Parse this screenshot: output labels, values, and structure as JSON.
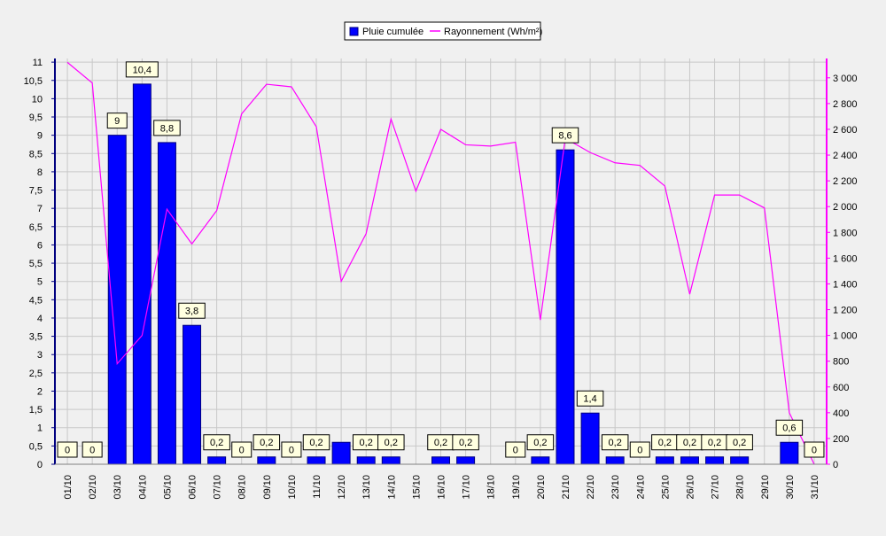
{
  "chart_data": {
    "type": "bar",
    "categories": [
      "01/10",
      "02/10",
      "03/10",
      "04/10",
      "05/10",
      "06/10",
      "07/10",
      "08/10",
      "09/10",
      "10/10",
      "11/10",
      "12/10",
      "13/10",
      "14/10",
      "15/10",
      "16/10",
      "17/10",
      "18/10",
      "19/10",
      "20/10",
      "21/10",
      "22/10",
      "23/10",
      "24/10",
      "25/10",
      "26/10",
      "27/10",
      "28/10",
      "29/10",
      "30/10",
      "31/10"
    ],
    "series": [
      {
        "name": "Pluie cumulée",
        "type": "bar",
        "axis": "left",
        "color": "#0000ff",
        "values": [
          0,
          0,
          9,
          10.4,
          8.8,
          3.8,
          0.2,
          0,
          0.2,
          0,
          0.2,
          0.6,
          0.2,
          0.2,
          0,
          0.2,
          0.2,
          0,
          0,
          0.2,
          8.6,
          1.4,
          0.2,
          0,
          0.2,
          0.2,
          0.2,
          0.2,
          0,
          0.6,
          0
        ],
        "labels": [
          "0",
          "0",
          "9",
          "10,4",
          "8,8",
          "3,8",
          "0,2",
          "0",
          "0,2",
          "0",
          "0,2",
          null,
          "0,2",
          "0,2",
          null,
          "0,2",
          "0,2",
          null,
          "0",
          "0,2",
          "8,6",
          "1,4",
          "0,2",
          "0",
          "0,2",
          "0,2",
          "0,2",
          "0,2",
          null,
          "0,6",
          "0"
        ]
      },
      {
        "name": "Rayonnement (Wh/m²)",
        "type": "line",
        "axis": "right",
        "color": "#ff00ff",
        "values": [
          3120,
          2960,
          780,
          1000,
          1980,
          1710,
          1970,
          2720,
          2950,
          2930,
          2620,
          1420,
          1790,
          2680,
          2120,
          2600,
          2480,
          2470,
          2500,
          1120,
          2530,
          2420,
          2340,
          2320,
          2160,
          1320,
          2090,
          2090,
          1990,
          400,
          0
        ]
      }
    ],
    "y_left": {
      "ylim": [
        0,
        11.1
      ],
      "ticks": [
        0,
        0.5,
        1,
        1.5,
        2,
        2.5,
        3,
        3.5,
        4,
        4.5,
        5,
        5.5,
        6,
        6.5,
        7,
        7.5,
        8,
        8.5,
        9,
        9.5,
        10,
        10.5,
        11
      ],
      "tick_labels": [
        "0",
        "0,5",
        "1",
        "1,5",
        "2",
        "2,5",
        "3",
        "3,5",
        "4",
        "4,5",
        "5",
        "5,5",
        "6",
        "6,5",
        "7",
        "7,5",
        "8",
        "8,5",
        "9",
        "9,5",
        "10",
        "10,5",
        "11"
      ]
    },
    "y_right": {
      "ylim": [
        0,
        3150
      ],
      "ticks": [
        0,
        200,
        400,
        600,
        800,
        1000,
        1200,
        1400,
        1600,
        1800,
        2000,
        2200,
        2400,
        2600,
        2800,
        3000
      ],
      "tick_labels": [
        "0",
        "200",
        "400",
        "600",
        "800",
        "1 000",
        "1 200",
        "1 400",
        "1 600",
        "1 800",
        "2 000",
        "2 200",
        "2 400",
        "2 600",
        "2 800",
        "3 000"
      ]
    },
    "grid": true,
    "legend_position": "top-center",
    "colors": {
      "background": "#f0f0f0",
      "grid": "#c8c8c8",
      "left_axis": "#000080",
      "right_axis": "#ff00ff",
      "label_box": "#ffffe0"
    }
  }
}
